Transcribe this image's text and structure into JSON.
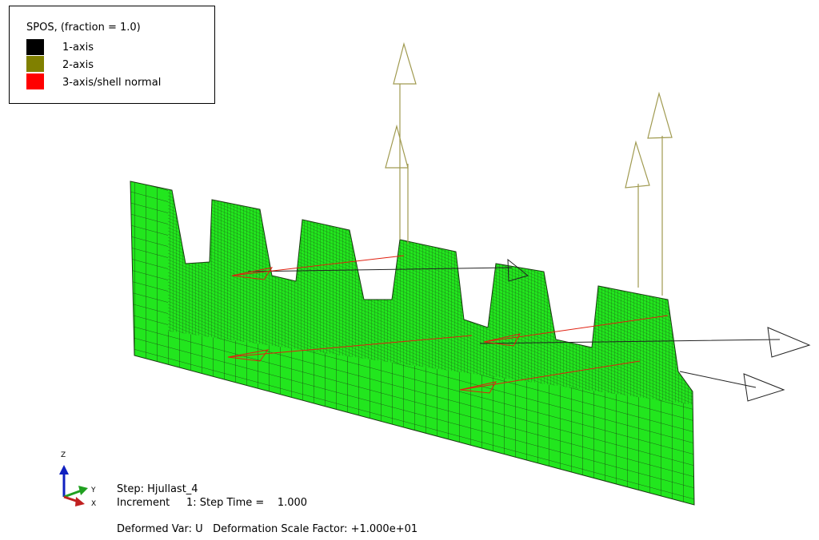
{
  "legend": {
    "title": "SPOS, (fraction = 1.0)",
    "items": [
      {
        "label": "1-axis",
        "color": "#000000"
      },
      {
        "label": "2-axis",
        "color": "#808000"
      },
      {
        "label": "3-axis/shell normal",
        "color": "#ff0000"
      }
    ]
  },
  "triad": {
    "z": "Z",
    "y": "Y",
    "x": "X"
  },
  "status": {
    "step": "Step: Hjullast_4",
    "increment": "Increment     1: Step Time =    1.000",
    "deformation": "Deformed Var: U   Deformation Scale Factor: +1.000e+01"
  }
}
